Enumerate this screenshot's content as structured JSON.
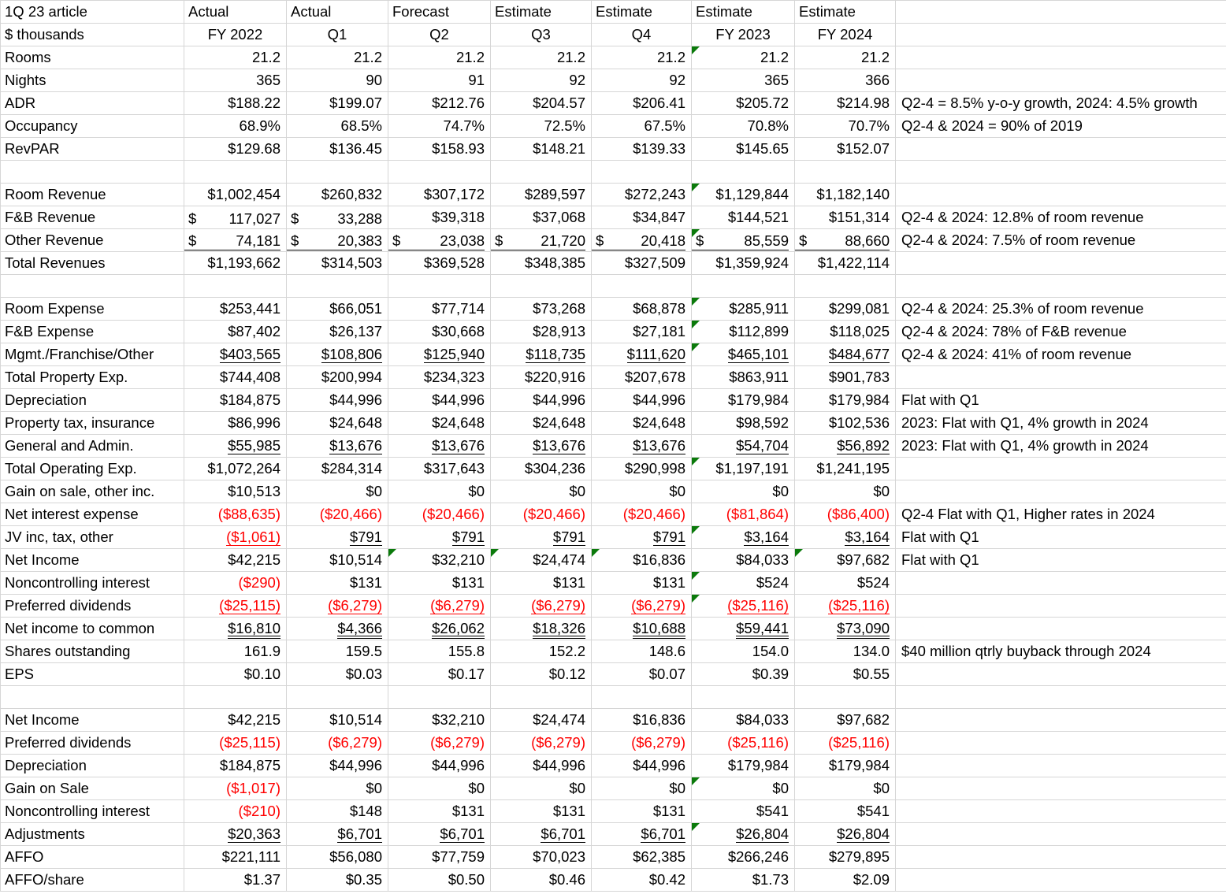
{
  "colors": {
    "negative": "#ff0000",
    "error_flag_green": "#0b7a0b",
    "gridline": "#d6d6d6"
  },
  "sheet": {
    "h1": {
      "label": "1Q 23 article",
      "cells": [
        "Actual",
        "Actual",
        "Forecast",
        "Estimate",
        "Estimate",
        "Estimate",
        "Estimate"
      ]
    },
    "h2": {
      "label": "$ thousands",
      "cells": [
        "FY 2022",
        "Q1",
        "Q2",
        "Q3",
        "Q4",
        "FY 2023",
        "FY 2024"
      ]
    },
    "rows": [
      {
        "label": "Rooms",
        "cells": [
          "21.2",
          "21.2",
          "21.2",
          "21.2",
          "21.2",
          "21.2",
          "21.2"
        ],
        "flags": [
          5
        ]
      },
      {
        "label": "Nights",
        "cells": [
          "365",
          "90",
          "91",
          "92",
          "92",
          "365",
          "366"
        ]
      },
      {
        "label": "ADR",
        "cells": [
          "$188.22",
          "$199.07",
          "$212.76",
          "$204.57",
          "$206.41",
          "$205.72",
          "$214.98"
        ],
        "note": "Q2-4 = 8.5% y-o-y growth, 2024: 4.5% growth"
      },
      {
        "label": "Occupancy",
        "cells": [
          "68.9%",
          "68.5%",
          "74.7%",
          "72.5%",
          "67.5%",
          "70.8%",
          "70.7%"
        ],
        "note": "Q2-4 & 2024 = 90% of 2019"
      },
      {
        "label": "RevPAR",
        "cells": [
          "$129.68",
          "$136.45",
          "$158.93",
          "$148.21",
          "$139.33",
          "$145.65",
          "$152.07"
        ]
      },
      {
        "blank": true
      },
      {
        "label": "Room Revenue",
        "cells": [
          "$1,002,454",
          "$260,832",
          "$307,172",
          "$289,597",
          "$272,243",
          "$1,129,844",
          "$1,182,140"
        ],
        "flags": [
          5
        ]
      },
      {
        "label": "F&B Revenue",
        "cells": [
          "117,027",
          "33,288",
          "$39,318",
          "$37,068",
          "$34,847",
          "$144,521",
          "$151,314"
        ],
        "acct": [
          0,
          1
        ],
        "note": "Q2-4 & 2024: 12.8% of room revenue"
      },
      {
        "label": "Other Revenue",
        "cells": [
          "74,181",
          "20,383",
          "23,038",
          "21,720",
          "20,418",
          "85,559",
          "88,660"
        ],
        "acct": [
          0,
          1,
          2,
          3,
          4,
          5,
          6
        ],
        "u": "single",
        "flags": [
          5
        ],
        "note": "Q2-4 & 2024: 7.5% of room revenue"
      },
      {
        "label": "Total Revenues",
        "cells": [
          "$1,193,662",
          "$314,503",
          "$369,528",
          "$348,385",
          "$327,509",
          "$1,359,924",
          "$1,422,114"
        ]
      },
      {
        "blank": true
      },
      {
        "label": "Room Expense",
        "cells": [
          "$253,441",
          "$66,051",
          "$77,714",
          "$73,268",
          "$68,878",
          "$285,911",
          "$299,081"
        ],
        "flags": [
          5
        ],
        "note": "Q2-4 & 2024: 25.3% of room revenue"
      },
      {
        "label": "F&B Expense",
        "cells": [
          "$87,402",
          "$26,137",
          "$30,668",
          "$28,913",
          "$27,181",
          "$112,899",
          "$118,025"
        ],
        "flags": [
          5
        ],
        "note": "Q2-4 & 2024: 78% of F&B revenue"
      },
      {
        "label": "Mgmt./Franchise/Other",
        "cells": [
          "$403,565",
          "$108,806",
          "$125,940",
          "$118,735",
          "$111,620",
          "$465,101",
          "$484,677"
        ],
        "u": "single",
        "flags": [
          5
        ],
        "note": "Q2-4 & 2024: 41% of room revenue"
      },
      {
        "label": "Total Property Exp.",
        "cells": [
          "$744,408",
          "$200,994",
          "$234,323",
          "$220,916",
          "$207,678",
          "$863,911",
          "$901,783"
        ]
      },
      {
        "label": "Depreciation",
        "cells": [
          "$184,875",
          "$44,996",
          "$44,996",
          "$44,996",
          "$44,996",
          "$179,984",
          "$179,984"
        ],
        "note": "Flat with Q1"
      },
      {
        "label": "Property tax, insurance",
        "cells": [
          "$86,996",
          "$24,648",
          "$24,648",
          "$24,648",
          "$24,648",
          "$98,592",
          "$102,536"
        ],
        "note": "2023: Flat with Q1, 4% growth in 2024"
      },
      {
        "label": "General and Admin.",
        "cells": [
          "$55,985",
          "$13,676",
          "$13,676",
          "$13,676",
          "$13,676",
          "$54,704",
          "$56,892"
        ],
        "u": "single",
        "note": "2023: Flat with Q1, 4% growth in 2024"
      },
      {
        "label": "Total Operating Exp.",
        "cells": [
          "$1,072,264",
          "$284,314",
          "$317,643",
          "$304,236",
          "$290,998",
          "$1,197,191",
          "$1,241,195"
        ],
        "flags": [
          5
        ]
      },
      {
        "label": "Gain on sale, other inc.",
        "cells": [
          "$10,513",
          "$0",
          "$0",
          "$0",
          "$0",
          "$0",
          "$0"
        ]
      },
      {
        "label": "Net interest expense",
        "cells": [
          "($88,635)",
          "($20,466)",
          "($20,466)",
          "($20,466)",
          "($20,466)",
          "($81,864)",
          "($86,400)"
        ],
        "note": "Q2-4 Flat with Q1, Higher rates in 2024"
      },
      {
        "label": "JV inc, tax, other",
        "cells": [
          "($1,061)",
          "$791",
          "$791",
          "$791",
          "$791",
          "$3,164",
          "$3,164"
        ],
        "u": "single",
        "flags": [
          5
        ],
        "note": "Flat with Q1"
      },
      {
        "label": "Net Income",
        "cells": [
          "$42,215",
          "$10,514",
          "$32,210",
          "$24,474",
          "$16,836",
          "$84,033",
          "$97,682"
        ],
        "flags": [
          2,
          3,
          4,
          6
        ],
        "note": "Flat with Q1"
      },
      {
        "label": "Noncontrolling interest",
        "cells": [
          "($290)",
          "$131",
          "$131",
          "$131",
          "$131",
          "$524",
          "$524"
        ],
        "flags": [
          5
        ]
      },
      {
        "label": "Preferred dividends",
        "cells": [
          "($25,115)",
          "($6,279)",
          "($6,279)",
          "($6,279)",
          "($6,279)",
          "($25,116)",
          "($25,116)"
        ],
        "u": "single",
        "flags": [
          5
        ]
      },
      {
        "label": "Net income to common",
        "cells": [
          "$16,810",
          "$4,366",
          "$26,062",
          "$18,326",
          "$10,688",
          "$59,441",
          "$73,090"
        ],
        "u": "double"
      },
      {
        "label": "Shares outstanding",
        "cells": [
          "161.9",
          "159.5",
          "155.8",
          "152.2",
          "148.6",
          "154.0",
          "134.0"
        ],
        "note": "$40 million qtrly buyback through 2024"
      },
      {
        "label": "EPS",
        "cells": [
          "$0.10",
          "$0.03",
          "$0.17",
          "$0.12",
          "$0.07",
          "$0.39",
          "$0.55"
        ]
      },
      {
        "blank": true
      },
      {
        "label": "Net Income",
        "cells": [
          "$42,215",
          "$10,514",
          "$32,210",
          "$24,474",
          "$16,836",
          "$84,033",
          "$97,682"
        ]
      },
      {
        "label": "Preferred dividends",
        "cells": [
          "($25,115)",
          "($6,279)",
          "($6,279)",
          "($6,279)",
          "($6,279)",
          "($25,116)",
          "($25,116)"
        ]
      },
      {
        "label": "Depreciation",
        "cells": [
          "$184,875",
          "$44,996",
          "$44,996",
          "$44,996",
          "$44,996",
          "$179,984",
          "$179,984"
        ]
      },
      {
        "label": "Gain on Sale",
        "cells": [
          "($1,017)",
          "$0",
          "$0",
          "$0",
          "$0",
          "$0",
          "$0"
        ],
        "flags": [
          5
        ]
      },
      {
        "label": "Noncontrolling interest",
        "cells": [
          "($210)",
          "$148",
          "$131",
          "$131",
          "$131",
          "$541",
          "$541"
        ]
      },
      {
        "label": "Adjustments",
        "cells": [
          "$20,363",
          "$6,701",
          "$6,701",
          "$6,701",
          "$6,701",
          "$26,804",
          "$26,804"
        ],
        "u": "single",
        "flags": [
          5
        ]
      },
      {
        "label": "AFFO",
        "cells": [
          "$221,111",
          "$56,080",
          "$77,759",
          "$70,023",
          "$62,385",
          "$266,246",
          "$279,895"
        ]
      },
      {
        "label": "AFFO/share",
        "cells": [
          "$1.37",
          "$0.35",
          "$0.50",
          "$0.46",
          "$0.42",
          "$1.73",
          "$2.09"
        ]
      }
    ]
  }
}
